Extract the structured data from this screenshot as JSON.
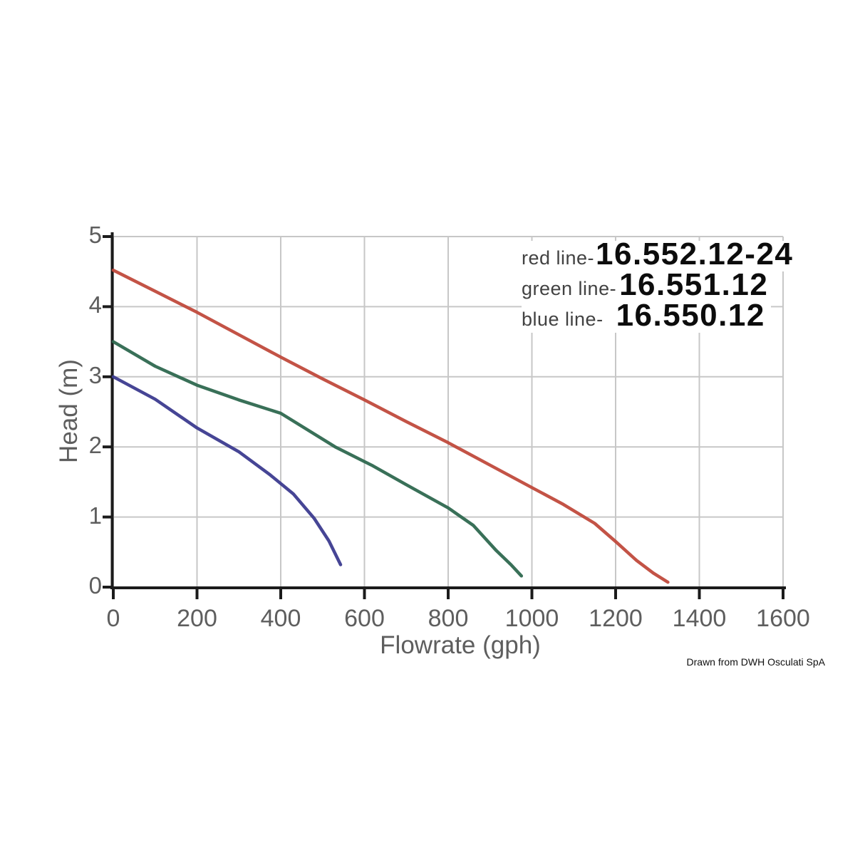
{
  "attribution": "Drawn from DWH Osculati SpA",
  "chart_data": {
    "type": "line",
    "title": "",
    "xlabel": "Flowrate (gph)",
    "ylabel": "Head (m)",
    "xlim": [
      0,
      1600
    ],
    "ylim": [
      0,
      5
    ],
    "x_ticks": [
      0,
      200,
      400,
      600,
      800,
      1000,
      1200,
      1400,
      1600
    ],
    "y_ticks": [
      0,
      1,
      2,
      3,
      4,
      5
    ],
    "grid": true,
    "legend_position": "top-right",
    "grid_color": "#c7c7c7",
    "axis_color": "#1b1b1b",
    "tick_label_color": "#5e5e5e",
    "series": [
      {
        "name": "16.552.12-24",
        "legend_label": "red line-",
        "color": "#c04a3c",
        "points": [
          [
            0,
            4.52
          ],
          [
            100,
            4.22
          ],
          [
            200,
            3.92
          ],
          [
            300,
            3.6
          ],
          [
            400,
            3.28
          ],
          [
            500,
            2.97
          ],
          [
            600,
            2.67
          ],
          [
            700,
            2.36
          ],
          [
            800,
            2.06
          ],
          [
            900,
            1.74
          ],
          [
            1000,
            1.42
          ],
          [
            1075,
            1.18
          ],
          [
            1150,
            0.91
          ],
          [
            1200,
            0.65
          ],
          [
            1250,
            0.38
          ],
          [
            1290,
            0.2
          ],
          [
            1325,
            0.07
          ]
        ]
      },
      {
        "name": "16.551.12",
        "legend_label": "green line-",
        "color": "#2e684f",
        "points": [
          [
            0,
            3.5
          ],
          [
            100,
            3.15
          ],
          [
            200,
            2.88
          ],
          [
            300,
            2.67
          ],
          [
            400,
            2.48
          ],
          [
            530,
            2.0
          ],
          [
            620,
            1.73
          ],
          [
            700,
            1.46
          ],
          [
            800,
            1.13
          ],
          [
            860,
            0.88
          ],
          [
            915,
            0.52
          ],
          [
            950,
            0.32
          ],
          [
            975,
            0.16
          ]
        ]
      },
      {
        "name": "16.550.12",
        "legend_label": "blue line-",
        "color": "#3c3b8f",
        "points": [
          [
            0,
            3.0
          ],
          [
            100,
            2.68
          ],
          [
            200,
            2.27
          ],
          [
            300,
            1.93
          ],
          [
            375,
            1.6
          ],
          [
            430,
            1.33
          ],
          [
            480,
            0.98
          ],
          [
            515,
            0.66
          ],
          [
            543,
            0.32
          ]
        ]
      }
    ]
  }
}
